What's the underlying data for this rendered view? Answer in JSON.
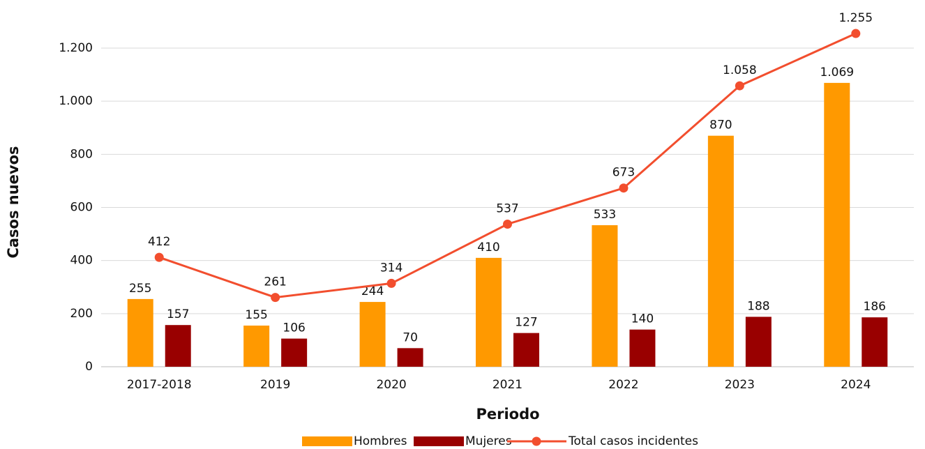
{
  "chart_data": {
    "type": "bar",
    "x_label": "Periodo",
    "y_label": "Casos nuevos",
    "categories": [
      "2017-2018",
      "2019",
      "2020",
      "2021",
      "2022",
      "2023",
      "2024"
    ],
    "series": [
      {
        "name": "Hombres",
        "type": "bar",
        "color": "#ff9900",
        "values": [
          255,
          155,
          244,
          410,
          533,
          870,
          1069
        ],
        "value_labels": [
          "255",
          "155",
          "244",
          "410",
          "533",
          "870",
          "1.069"
        ]
      },
      {
        "name": "Mujeres",
        "type": "bar",
        "color": "#990000",
        "values": [
          157,
          106,
          70,
          127,
          140,
          188,
          186
        ],
        "value_labels": [
          "157",
          "106",
          "70",
          "127",
          "140",
          "188",
          "186"
        ]
      },
      {
        "name": "Total casos incidentes",
        "type": "line",
        "color": "#f24e2e",
        "values": [
          412,
          261,
          314,
          537,
          673,
          1058,
          1255
        ],
        "value_labels": [
          "412",
          "261",
          "314",
          "537",
          "673",
          "1.058",
          "1.255"
        ]
      }
    ],
    "ylim": [
      0,
      1200
    ],
    "yticks": [
      0,
      200,
      400,
      600,
      800,
      {
        "value": 1000,
        "label": "1.000"
      },
      {
        "value": 1200,
        "label": "1.200"
      }
    ],
    "grid": true,
    "legend": "bottom"
  }
}
